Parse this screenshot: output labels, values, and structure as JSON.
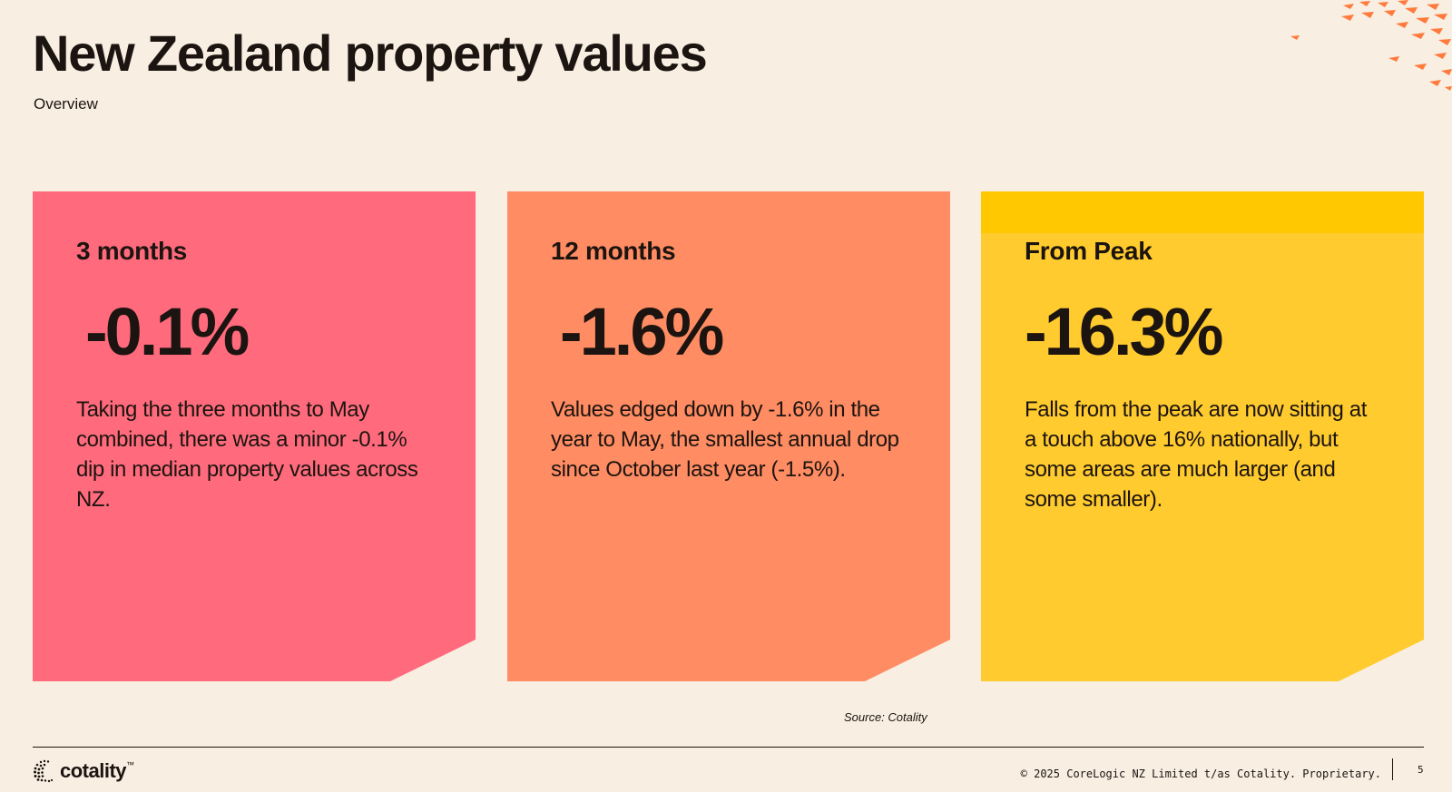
{
  "header": {
    "title": "New Zealand property values",
    "subtitle": "Overview"
  },
  "cards": [
    {
      "label": "3 months",
      "value": "-0.1%",
      "description": "Taking the three months to May combined, there was a minor -0.1% dip in median property values across NZ.",
      "color": "#ff6b7c"
    },
    {
      "label": "12 months",
      "value": "-1.6%",
      "description": "Values edged down by -1.6% in the year to May, the smallest annual drop since October last year (-1.5%).",
      "color": "#ff8c62"
    },
    {
      "label": "From Peak",
      "value": "-16.3%",
      "description": "Falls from the peak are now sitting at a touch above 16% nationally, but some areas are much larger (and some smaller).",
      "color": "#ffcb2e",
      "accent_color": "#ffc800"
    }
  ],
  "source": "Source: Cotality",
  "footer": {
    "logo_text": "cotality",
    "logo_mark": "™",
    "copyright": "© 2025 CoreLogic NZ Limited t/as Cotality. Proprietary.",
    "page_number": "5"
  },
  "colors": {
    "background": "#f8eee2",
    "text": "#1c1410",
    "decoration": "#ff7a3d"
  }
}
